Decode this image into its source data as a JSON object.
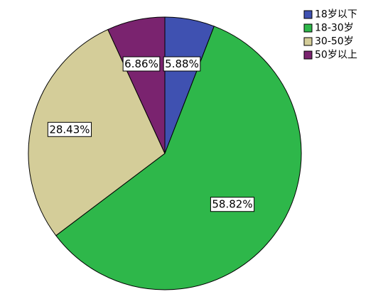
{
  "chart_data": {
    "type": "pie",
    "categories": [
      "18岁以下",
      "18-30岁",
      "30-50岁",
      "50岁以上"
    ],
    "values": [
      5.88,
      58.82,
      28.43,
      6.86
    ],
    "labels": [
      "5.88%",
      "58.82%",
      "28.43%",
      "6.86%"
    ],
    "colors": [
      "#3f51b1",
      "#2eb74a",
      "#d4cd99",
      "#7a236f"
    ],
    "start_angle": "12 o'clock",
    "direction": "clockwise",
    "legend_position": "top-right",
    "title": ""
  }
}
